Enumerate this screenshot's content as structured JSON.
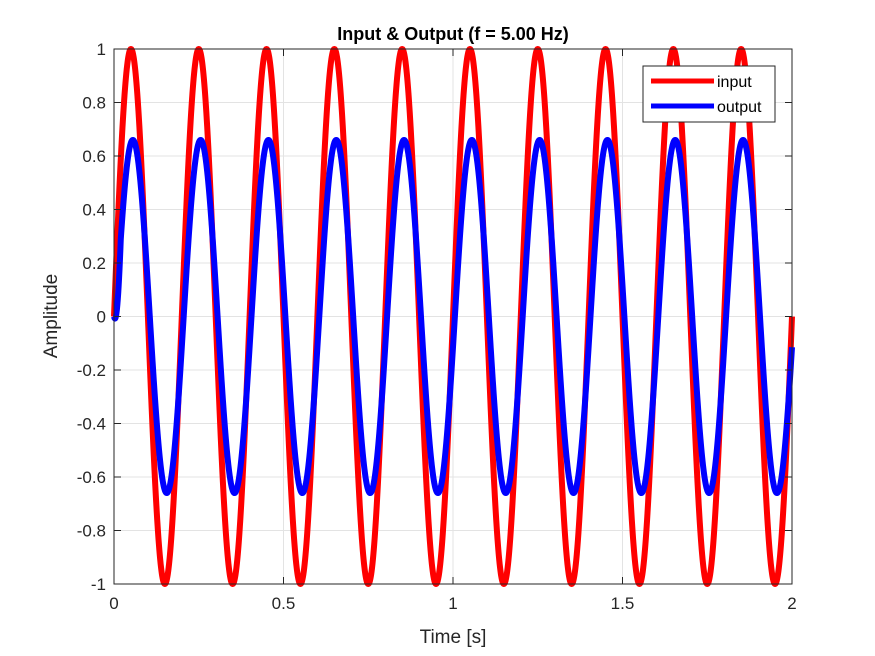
{
  "chart_data": {
    "type": "line",
    "title": "Input & Output (f = 5.00 Hz)",
    "xlabel": "Time [s]",
    "ylabel": "Amplitude",
    "xlim": [
      0,
      2
    ],
    "ylim": [
      -1,
      1
    ],
    "xticks": [
      0,
      0.5,
      1,
      1.5,
      2
    ],
    "xtick_labels": [
      "0",
      "0.5",
      "1",
      "1.5",
      "2"
    ],
    "yticks": [
      -1,
      -0.8,
      -0.6,
      -0.4,
      -0.2,
      0,
      0.2,
      0.4,
      0.6,
      0.8,
      1
    ],
    "ytick_labels": [
      "-1",
      "-0.8",
      "-0.6",
      "-0.4",
      "-0.2",
      "0",
      "0.2",
      "0.4",
      "0.6",
      "0.8",
      "1"
    ],
    "grid": true,
    "legend_position": "top-right",
    "series": [
      {
        "name": "input",
        "color": "#ff0000",
        "frequency_hz": 5,
        "amplitude": 1,
        "phase_deg": 0,
        "x": [
          0,
          0.05,
          0.1,
          0.15,
          0.2,
          0.25,
          0.3,
          0.35,
          0.4,
          0.45,
          0.5,
          0.55,
          0.6,
          0.65,
          0.7,
          0.75,
          0.8,
          0.85,
          0.9,
          0.95,
          1,
          1.05,
          1.1,
          1.15,
          1.2,
          1.25,
          1.3,
          1.35,
          1.4,
          1.45,
          1.5,
          1.55,
          1.6,
          1.65,
          1.7,
          1.75,
          1.8,
          1.85,
          1.9,
          1.95,
          2
        ],
        "values": [
          0,
          1,
          0,
          -1,
          0,
          1,
          0,
          -1,
          0,
          1,
          0,
          -1,
          0,
          1,
          0,
          -1,
          0,
          1,
          0,
          -1,
          0,
          1,
          0,
          -1,
          0,
          1,
          0,
          -1,
          0,
          1,
          0,
          -1,
          0,
          1,
          0,
          -1,
          0,
          1,
          0,
          -1,
          0
        ]
      },
      {
        "name": "output",
        "color": "#0000ff",
        "frequency_hz": 5,
        "amplitude": 0.66,
        "phase_deg": -10,
        "x": [
          0,
          0.056,
          0.106,
          0.156,
          0.206,
          0.256,
          0.306,
          0.356,
          0.406,
          0.456,
          0.506,
          0.556,
          0.606,
          0.656,
          0.706,
          0.756,
          0.806,
          0.856,
          0.906,
          0.956,
          1.006,
          1.056,
          1.106,
          1.156,
          1.206,
          1.256,
          1.306,
          1.356,
          1.406,
          1.456,
          1.506,
          1.556,
          1.606,
          1.656,
          1.706,
          1.756,
          1.806,
          1.856,
          1.906,
          1.956,
          2
        ],
        "values": [
          0,
          0.67,
          0,
          -0.65,
          0,
          0.66,
          0,
          -0.65,
          0,
          0.66,
          0,
          -0.65,
          0,
          0.66,
          0,
          -0.65,
          0,
          0.66,
          0,
          -0.65,
          0,
          0.66,
          0,
          -0.65,
          0,
          0.66,
          0,
          -0.65,
          0,
          0.66,
          0,
          -0.65,
          0,
          0.66,
          0,
          -0.65,
          0,
          0.66,
          0,
          -0.65,
          -0.1
        ]
      }
    ]
  }
}
